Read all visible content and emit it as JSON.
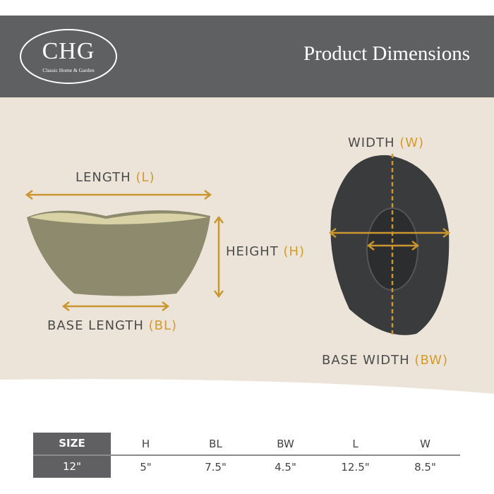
{
  "header": {
    "logo_text": "CHG",
    "logo_subtitle": "Classic Home & Garden",
    "title": "Product Dimensions",
    "background": "#5f6062"
  },
  "labels": {
    "length": {
      "text": "LENGTH",
      "abbr": "(L)"
    },
    "height": {
      "text": "HEIGHT",
      "abbr": "(H)"
    },
    "base_length": {
      "text": "BASE LENGTH",
      "abbr": "(BL)"
    },
    "width": {
      "text": "WIDTH",
      "abbr": "(W)"
    },
    "base_width": {
      "text": "BASE WIDTH",
      "abbr": "(BW)"
    }
  },
  "accent_color": "#d49a2c",
  "table": {
    "headers": [
      "SIZE",
      "H",
      "BL",
      "BW",
      "L",
      "W"
    ],
    "rows": [
      [
        "12\"",
        "5\"",
        "7.5\"",
        "4.5\"",
        "12.5\"",
        "8.5\""
      ]
    ]
  }
}
